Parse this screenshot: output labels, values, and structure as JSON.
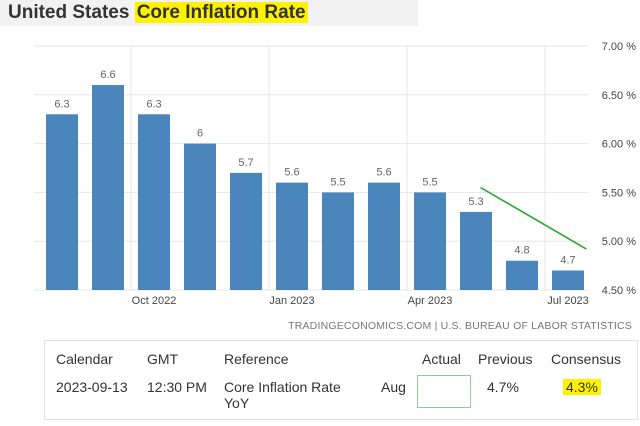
{
  "header": {
    "title_prefix": "United States",
    "title_highlight": "Core Inflation Rate"
  },
  "chart_data": {
    "type": "bar",
    "title": "United States Core Inflation Rate",
    "xlabel": "",
    "ylabel": "",
    "values": [
      6.3,
      6.6,
      6.3,
      6.0,
      5.7,
      5.6,
      5.5,
      5.6,
      5.5,
      5.3,
      4.8,
      4.7
    ],
    "value_labels": [
      "6.3",
      "6.6",
      "6.3",
      "6",
      "5.7",
      "5.6",
      "5.5",
      "5.6",
      "5.5",
      "5.3",
      "4.8",
      "4.7"
    ],
    "x_tick_labels": [
      {
        "label": "Oct 2022",
        "index": 2
      },
      {
        "label": "Jan 2023",
        "index": 5
      },
      {
        "label": "Apr 2023",
        "index": 8
      },
      {
        "label": "Jul 2023",
        "index": 11
      }
    ],
    "ylim": [
      4.5,
      7.0
    ],
    "y_ticks": [
      4.5,
      5.0,
      5.5,
      6.0,
      6.5,
      7.0
    ],
    "y_tick_labels": [
      "4.50 %",
      "5.00 %",
      "5.50 %",
      "6.00 %",
      "6.50 %",
      "7.00 %"
    ],
    "y_axis_side": "right",
    "grid": true,
    "colors": {
      "bar": "#4a85bb",
      "trend_line": "#2aa835",
      "grid": "#e6e6e6"
    },
    "annotation": {
      "type": "trend-line",
      "from": {
        "index": 9.1,
        "y": 5.55
      },
      "to": {
        "index": 11.4,
        "y": 4.92
      }
    }
  },
  "source": "TRADINGECONOMICS.COM | U.S. BUREAU OF LABOR STATISTICS",
  "calendar": {
    "headers": {
      "calendar": "Calendar",
      "gmt": "GMT",
      "reference": "Reference",
      "actual": "Actual",
      "previous": "Previous",
      "consensus": "Consensus"
    },
    "row": {
      "date": "2023-09-13",
      "time": "12:30 PM",
      "reference_line1": "Core Inflation Rate",
      "reference_line2": "YoY",
      "period": "Aug",
      "actual": "",
      "previous": "4.7%",
      "consensus": "4.3%"
    },
    "highlight_color": "#fff200"
  }
}
